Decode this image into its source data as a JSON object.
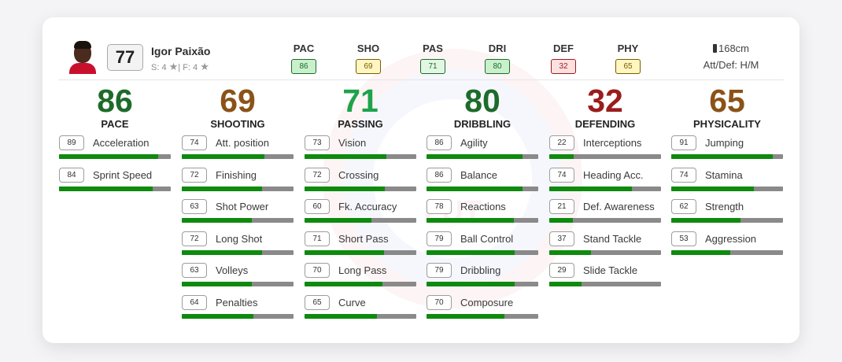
{
  "player": {
    "name": "Igor Paixão",
    "overall": "77",
    "skills_label": "S: 4",
    "separator": "| F: 4",
    "height": "168cm",
    "att_def": "Att/Def: H/M"
  },
  "header_stats": [
    {
      "label": "PAC",
      "value": "86",
      "style": "g-dark"
    },
    {
      "label": "SHO",
      "value": "69",
      "style": "yellow"
    },
    {
      "label": "PAS",
      "value": "71",
      "style": "g-light"
    },
    {
      "label": "DRI",
      "value": "80",
      "style": "g-dark"
    },
    {
      "label": "DEF",
      "value": "32",
      "style": "red"
    },
    {
      "label": "PHY",
      "value": "65",
      "style": "yellow"
    }
  ],
  "colors": {
    "dark_green": "#1d6b2a",
    "green": "#1ea34a",
    "brown": "#8b5318",
    "red": "#9b1c1c",
    "bar_fill": "#0e8a0e",
    "bar_track": "#8a8a8a"
  },
  "categories": [
    {
      "rating": "86",
      "name": "PACE",
      "color": "#1d6b2a",
      "attrs": [
        {
          "value": 89,
          "name": "Acceleration"
        },
        {
          "value": 84,
          "name": "Sprint Speed"
        }
      ]
    },
    {
      "rating": "69",
      "name": "SHOOTING",
      "color": "#8b5318",
      "attrs": [
        {
          "value": 74,
          "name": "Att. position"
        },
        {
          "value": 72,
          "name": "Finishing"
        },
        {
          "value": 63,
          "name": "Shot Power"
        },
        {
          "value": 72,
          "name": "Long Shot"
        },
        {
          "value": 63,
          "name": "Volleys"
        },
        {
          "value": 64,
          "name": "Penalties"
        }
      ]
    },
    {
      "rating": "71",
      "name": "PASSING",
      "color": "#1ea34a",
      "attrs": [
        {
          "value": 73,
          "name": "Vision"
        },
        {
          "value": 72,
          "name": "Crossing"
        },
        {
          "value": 60,
          "name": "Fk. Accuracy"
        },
        {
          "value": 71,
          "name": "Short Pass"
        },
        {
          "value": 70,
          "name": "Long Pass"
        },
        {
          "value": 65,
          "name": "Curve"
        }
      ]
    },
    {
      "rating": "80",
      "name": "DRIBBLING",
      "color": "#1d6b2a",
      "attrs": [
        {
          "value": 86,
          "name": "Agility"
        },
        {
          "value": 86,
          "name": "Balance"
        },
        {
          "value": 78,
          "name": "Reactions"
        },
        {
          "value": 79,
          "name": "Ball Control"
        },
        {
          "value": 79,
          "name": "Dribbling"
        },
        {
          "value": 70,
          "name": "Composure"
        }
      ]
    },
    {
      "rating": "32",
      "name": "DEFENDING",
      "color": "#9b1c1c",
      "attrs": [
        {
          "value": 22,
          "name": "Interceptions"
        },
        {
          "value": 74,
          "name": "Heading Acc."
        },
        {
          "value": 21,
          "name": "Def. Awareness"
        },
        {
          "value": 37,
          "name": "Stand Tackle"
        },
        {
          "value": 29,
          "name": "Slide Tackle"
        }
      ]
    },
    {
      "rating": "65",
      "name": "PHYSICALITY",
      "color": "#8b5318",
      "attrs": [
        {
          "value": 91,
          "name": "Jumping"
        },
        {
          "value": 74,
          "name": "Stamina"
        },
        {
          "value": 62,
          "name": "Strength"
        },
        {
          "value": 53,
          "name": "Aggression"
        }
      ]
    }
  ]
}
